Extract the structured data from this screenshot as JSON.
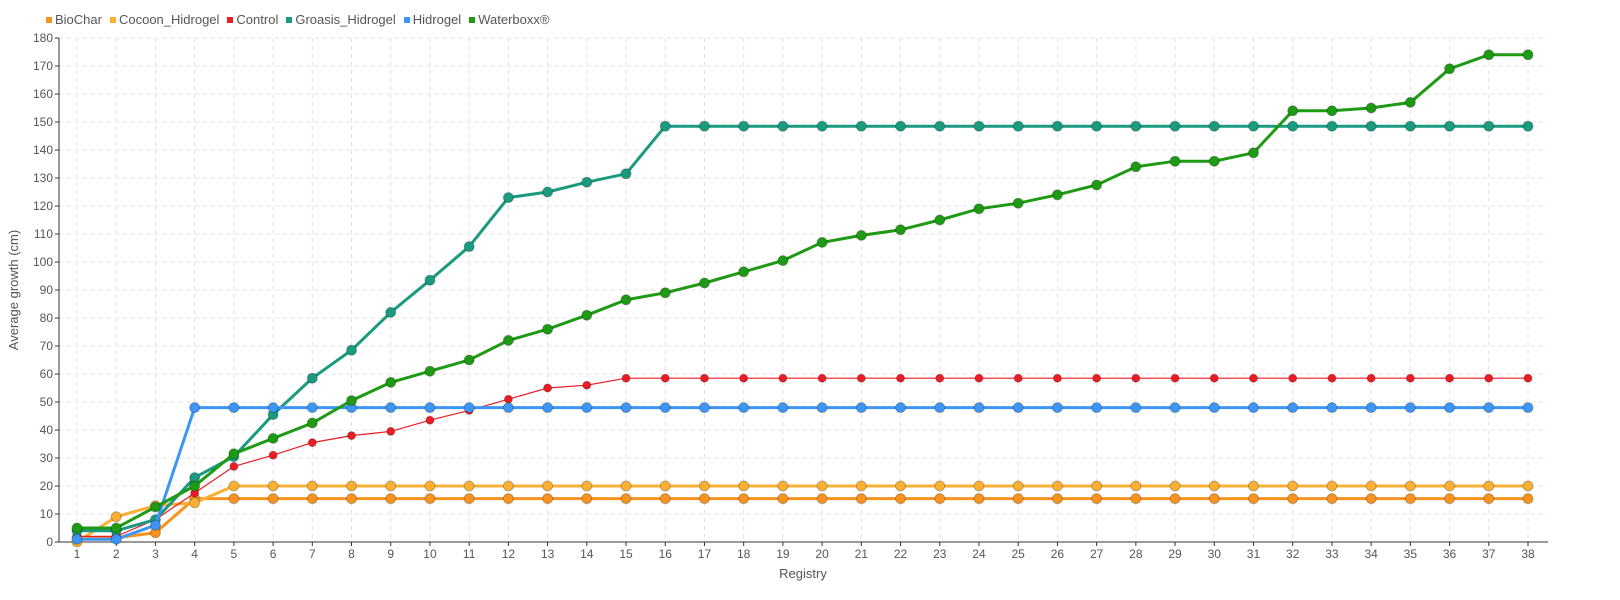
{
  "chart_data": {
    "type": "line",
    "title": "",
    "xlabel": "Registry",
    "ylabel": "Average growth (cm)",
    "ylim": [
      0,
      180
    ],
    "yticks": [
      0,
      10,
      20,
      30,
      40,
      50,
      60,
      70,
      80,
      90,
      100,
      110,
      120,
      130,
      140,
      150,
      160,
      170,
      180
    ],
    "x": [
      1,
      2,
      3,
      4,
      5,
      6,
      7,
      8,
      9,
      10,
      11,
      12,
      13,
      14,
      15,
      16,
      17,
      18,
      19,
      20,
      21,
      22,
      23,
      24,
      25,
      26,
      27,
      28,
      29,
      30,
      31,
      32,
      33,
      34,
      35,
      36,
      37,
      38
    ],
    "grid": true,
    "legend_placement": "top-left",
    "series": [
      {
        "name": "BioChar",
        "color": "#f7931e",
        "values": [
          1.5,
          1.5,
          3.3,
          15.5,
          15.5,
          15.5,
          15.5,
          15.5,
          15.5,
          15.5,
          15.5,
          15.5,
          15.5,
          15.5,
          15.5,
          15.5,
          15.5,
          15.5,
          15.5,
          15.5,
          15.5,
          15.5,
          15.5,
          15.5,
          15.5,
          15.5,
          15.5,
          15.5,
          15.5,
          15.5,
          15.5,
          15.5,
          15.5,
          15.5,
          15.5,
          15.5,
          15.5,
          15.5
        ]
      },
      {
        "name": "Cocoon_Hidrogel",
        "color": "#fbb034",
        "values": [
          0,
          9,
          13,
          14,
          20,
          20,
          20,
          20,
          20,
          20,
          20,
          20,
          20,
          20,
          20,
          20,
          20,
          20,
          20,
          20,
          20,
          20,
          20,
          20,
          20,
          20,
          20,
          20,
          20,
          20,
          20,
          20,
          20,
          20,
          20,
          20,
          20,
          20
        ]
      },
      {
        "name": "Control",
        "color": "#ed1c24",
        "values": [
          2,
          2,
          8,
          17.5,
          27,
          31,
          35.5,
          38,
          39.5,
          43.5,
          47,
          51,
          55,
          56,
          58.5,
          58.5,
          58.5,
          58.5,
          58.5,
          58.5,
          58.5,
          58.5,
          58.5,
          58.5,
          58.5,
          58.5,
          58.5,
          58.5,
          58.5,
          58.5,
          58.5,
          58.5,
          58.5,
          58.5,
          58.5,
          58.5,
          58.5,
          58.5
        ]
      },
      {
        "name": "Groasis_Hidrogel",
        "color": "#1a9a7e",
        "values": [
          4,
          4,
          8,
          23,
          30.5,
          45.5,
          58.5,
          68.5,
          82,
          93.5,
          105.5,
          123,
          125,
          128.5,
          131.5,
          148.5,
          148.5,
          148.5,
          148.5,
          148.5,
          148.5,
          148.5,
          148.5,
          148.5,
          148.5,
          148.5,
          148.5,
          148.5,
          148.5,
          148.5,
          148.5,
          148.5,
          148.5,
          148.5,
          148.5,
          148.5,
          148.5,
          148.5
        ]
      },
      {
        "name": "Hidrogel",
        "color": "#3d95f5",
        "values": [
          1,
          1,
          6,
          48,
          48,
          48,
          48,
          48,
          48,
          48,
          48,
          48,
          48,
          48,
          48,
          48,
          48,
          48,
          48,
          48,
          48,
          48,
          48,
          48,
          48,
          48,
          48,
          48,
          48,
          48,
          48,
          48,
          48,
          48,
          48,
          48,
          48,
          48
        ]
      },
      {
        "name": "Waterboxx®",
        "color": "#1e9a14",
        "values": [
          5,
          5,
          12.5,
          20,
          31.5,
          37,
          42.5,
          50.5,
          57,
          61,
          65,
          72,
          76,
          81,
          86.5,
          89,
          92.5,
          96.5,
          100.5,
          107,
          109.5,
          111.5,
          115,
          119,
          121,
          124,
          127.5,
          134,
          136,
          136,
          139,
          154,
          154,
          155,
          157,
          169,
          174,
          174
        ]
      }
    ]
  }
}
